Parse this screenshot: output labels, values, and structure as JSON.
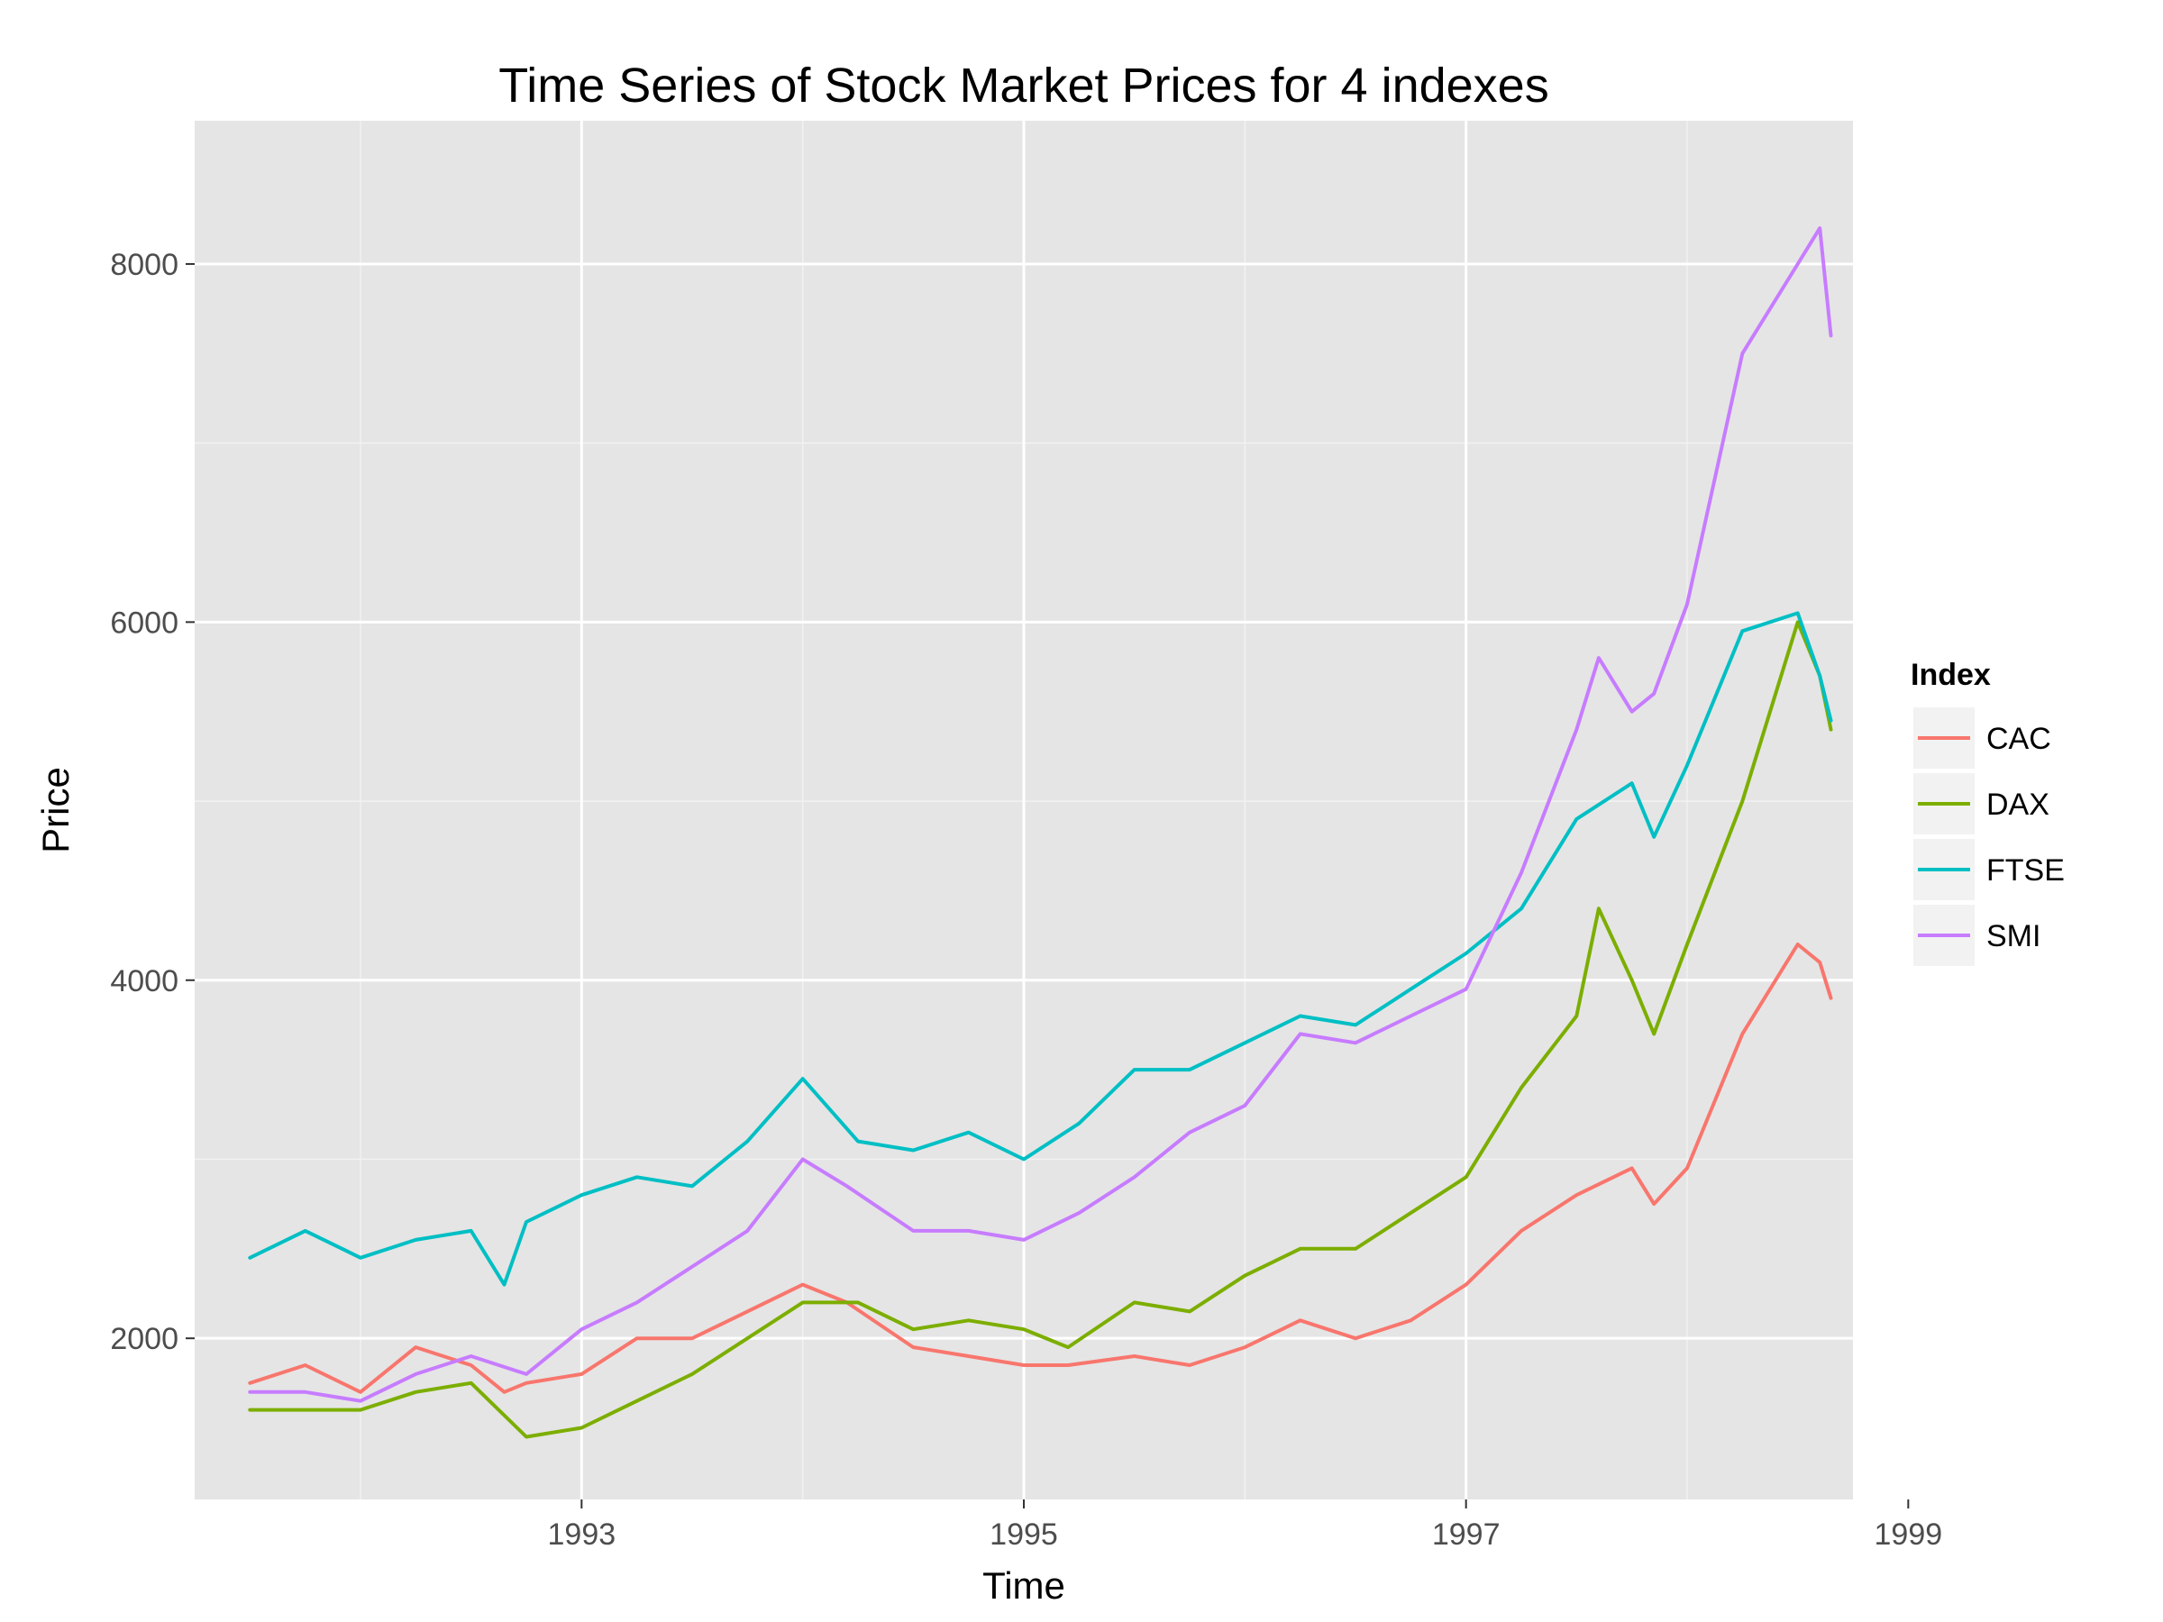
{
  "chart_data": {
    "type": "line",
    "title": "Time Series of Stock Market Prices for 4 indexes",
    "xlabel": "Time",
    "ylabel": "Price",
    "xlim": [
      1991.25,
      1998.75
    ],
    "ylim": [
      1100,
      8800
    ],
    "x_ticks": [
      1993,
      1995,
      1997,
      1999
    ],
    "x_tick_labels": [
      "1993",
      "1995",
      "1997",
      "1999"
    ],
    "y_ticks": [
      2000,
      4000,
      6000,
      8000
    ],
    "y_tick_labels": [
      "2000",
      "4000",
      "6000",
      "8000"
    ],
    "grid": true,
    "legend": {
      "title": "Index",
      "position": "right"
    },
    "series": [
      {
        "name": "CAC",
        "color": "#F8766D",
        "x": [
          1991.5,
          1991.75,
          1992.0,
          1992.25,
          1992.5,
          1992.65,
          1992.75,
          1993.0,
          1993.25,
          1993.5,
          1993.75,
          1994.0,
          1994.2,
          1994.5,
          1994.75,
          1995.0,
          1995.2,
          1995.5,
          1995.75,
          1996.0,
          1996.25,
          1996.5,
          1996.75,
          1997.0,
          1997.25,
          1997.5,
          1997.75,
          1997.85,
          1998.0,
          1998.25,
          1998.5,
          1998.6,
          1998.65
        ],
        "y": [
          1750,
          1850,
          1700,
          1950,
          1850,
          1700,
          1750,
          1800,
          2000,
          2000,
          2150,
          2300,
          2200,
          1950,
          1900,
          1850,
          1850,
          1900,
          1850,
          1950,
          2100,
          2000,
          2100,
          2300,
          2600,
          2800,
          2950,
          2750,
          2950,
          3700,
          4200,
          4100,
          3900
        ]
      },
      {
        "name": "DAX",
        "color": "#7CAE00",
        "x": [
          1991.5,
          1991.75,
          1992.0,
          1992.25,
          1992.5,
          1992.75,
          1993.0,
          1993.25,
          1993.5,
          1993.75,
          1994.0,
          1994.25,
          1994.5,
          1994.75,
          1995.0,
          1995.2,
          1995.5,
          1995.75,
          1996.0,
          1996.25,
          1996.5,
          1996.75,
          1997.0,
          1997.25,
          1997.5,
          1997.6,
          1997.75,
          1997.85,
          1998.0,
          1998.25,
          1998.5,
          1998.6,
          1998.65
        ],
        "y": [
          1600,
          1600,
          1600,
          1700,
          1750,
          1450,
          1500,
          1650,
          1800,
          2000,
          2200,
          2200,
          2050,
          2100,
          2050,
          1950,
          2200,
          2150,
          2350,
          2500,
          2500,
          2700,
          2900,
          3400,
          3800,
          4400,
          4000,
          3700,
          4200,
          5000,
          6000,
          5700,
          5400
        ]
      },
      {
        "name": "FTSE",
        "color": "#00BFC4",
        "x": [
          1991.5,
          1991.75,
          1992.0,
          1992.25,
          1992.5,
          1992.65,
          1992.75,
          1993.0,
          1993.25,
          1993.5,
          1993.75,
          1994.0,
          1994.25,
          1994.5,
          1994.75,
          1995.0,
          1995.25,
          1995.5,
          1995.75,
          1996.0,
          1996.25,
          1996.5,
          1996.75,
          1997.0,
          1997.25,
          1997.5,
          1997.75,
          1997.85,
          1998.0,
          1998.25,
          1998.5,
          1998.6,
          1998.65
        ],
        "y": [
          2450,
          2600,
          2450,
          2550,
          2600,
          2300,
          2650,
          2800,
          2900,
          2850,
          3100,
          3450,
          3100,
          3050,
          3150,
          3000,
          3200,
          3500,
          3500,
          3650,
          3800,
          3750,
          3950,
          4150,
          4400,
          4900,
          5100,
          4800,
          5200,
          5950,
          6050,
          5700,
          5450
        ]
      },
      {
        "name": "SMI",
        "color": "#C77CFF",
        "x": [
          1991.5,
          1991.75,
          1992.0,
          1992.25,
          1992.5,
          1992.75,
          1993.0,
          1993.25,
          1993.5,
          1993.75,
          1994.0,
          1994.2,
          1994.5,
          1994.75,
          1995.0,
          1995.25,
          1995.5,
          1995.75,
          1996.0,
          1996.25,
          1996.5,
          1996.75,
          1997.0,
          1997.25,
          1997.5,
          1997.6,
          1997.75,
          1997.85,
          1998.0,
          1998.25,
          1998.5,
          1998.6,
          1998.65
        ],
        "y": [
          1700,
          1700,
          1650,
          1800,
          1900,
          1800,
          2050,
          2200,
          2400,
          2600,
          3000,
          2850,
          2600,
          2600,
          2550,
          2700,
          2900,
          3150,
          3300,
          3700,
          3650,
          3800,
          3950,
          4600,
          5400,
          5800,
          5500,
          5600,
          6100,
          7500,
          8000,
          8200,
          7600
        ]
      }
    ]
  }
}
